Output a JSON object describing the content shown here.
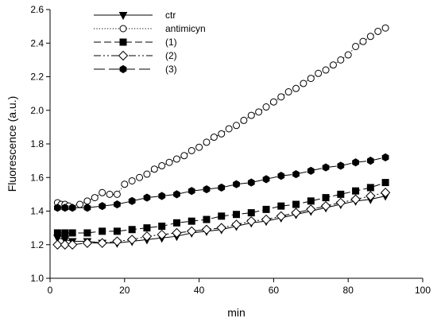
{
  "chart_data": {
    "type": "line",
    "title": "",
    "xlabel": "min",
    "ylabel": "Fluorescence (a.u.)",
    "xlim": [
      0,
      100
    ],
    "ylim": [
      1.0,
      2.6
    ],
    "xticks": [
      0,
      20,
      40,
      60,
      80,
      100
    ],
    "xtick_labels": [
      "0",
      "20",
      "40",
      "60",
      "80",
      "100"
    ],
    "yticks": [
      1.0,
      1.2,
      1.4,
      1.6,
      1.8,
      2.0,
      2.2,
      2.4,
      2.6
    ],
    "ytick_labels": [
      "1.0",
      "1.2",
      "1.4",
      "1.6",
      "1.8",
      "2.0",
      "2.2",
      "2.4",
      "2.6"
    ],
    "grid": false,
    "legend_position": "top-left",
    "series": [
      {
        "name": "ctr",
        "marker": "triangle-down",
        "marker_fill": "filled",
        "line_style": "solid",
        "x": [
          2,
          4,
          6,
          10,
          14,
          18,
          22,
          26,
          30,
          34,
          38,
          42,
          46,
          50,
          54,
          58,
          62,
          66,
          70,
          74,
          78,
          82,
          86,
          90
        ],
        "y": [
          1.24,
          1.23,
          1.22,
          1.22,
          1.21,
          1.21,
          1.22,
          1.23,
          1.24,
          1.25,
          1.27,
          1.28,
          1.29,
          1.31,
          1.33,
          1.34,
          1.36,
          1.38,
          1.4,
          1.42,
          1.44,
          1.46,
          1.47,
          1.49
        ]
      },
      {
        "name": "antimicyn",
        "marker": "circle",
        "marker_fill": "open",
        "line_style": "dotted",
        "x": [
          2,
          3,
          4,
          5,
          8,
          10,
          12,
          14,
          16,
          18,
          20,
          22,
          24,
          26,
          28,
          30,
          32,
          34,
          36,
          38,
          40,
          42,
          44,
          46,
          48,
          50,
          52,
          54,
          56,
          58,
          60,
          62,
          64,
          66,
          68,
          70,
          72,
          74,
          76,
          78,
          80,
          82,
          84,
          86,
          88,
          90
        ],
        "y": [
          1.45,
          1.44,
          1.44,
          1.43,
          1.44,
          1.46,
          1.48,
          1.51,
          1.5,
          1.5,
          1.56,
          1.58,
          1.6,
          1.62,
          1.65,
          1.67,
          1.69,
          1.71,
          1.73,
          1.76,
          1.78,
          1.81,
          1.84,
          1.86,
          1.89,
          1.91,
          1.94,
          1.97,
          1.99,
          2.02,
          2.05,
          2.08,
          2.11,
          2.13,
          2.16,
          2.19,
          2.22,
          2.24,
          2.27,
          2.3,
          2.33,
          2.38,
          2.41,
          2.44,
          2.47,
          2.49
        ]
      },
      {
        "name": "(1)",
        "marker": "square",
        "marker_fill": "filled",
        "line_style": "dashed",
        "x": [
          2,
          4,
          6,
          10,
          14,
          18,
          22,
          26,
          30,
          34,
          38,
          42,
          46,
          50,
          54,
          58,
          62,
          66,
          70,
          74,
          78,
          82,
          86,
          90
        ],
        "y": [
          1.27,
          1.27,
          1.27,
          1.27,
          1.28,
          1.28,
          1.29,
          1.3,
          1.31,
          1.33,
          1.34,
          1.35,
          1.37,
          1.38,
          1.39,
          1.41,
          1.43,
          1.44,
          1.46,
          1.48,
          1.5,
          1.52,
          1.54,
          1.57
        ]
      },
      {
        "name": "(2)",
        "marker": "diamond",
        "marker_fill": "open",
        "line_style": "dash-dot-dot",
        "x": [
          2,
          4,
          6,
          10,
          14,
          18,
          22,
          26,
          30,
          34,
          38,
          42,
          46,
          50,
          54,
          58,
          62,
          66,
          70,
          74,
          78,
          82,
          86,
          90
        ],
        "y": [
          1.2,
          1.2,
          1.2,
          1.21,
          1.21,
          1.22,
          1.23,
          1.25,
          1.26,
          1.27,
          1.28,
          1.29,
          1.3,
          1.32,
          1.34,
          1.35,
          1.37,
          1.39,
          1.41,
          1.43,
          1.45,
          1.47,
          1.49,
          1.51
        ]
      },
      {
        "name": "(3)",
        "marker": "hexagon",
        "marker_fill": "filled",
        "line_style": "long-dash",
        "x": [
          2,
          4,
          6,
          10,
          14,
          18,
          22,
          26,
          30,
          34,
          38,
          42,
          46,
          50,
          54,
          58,
          62,
          66,
          70,
          74,
          78,
          82,
          86,
          90
        ],
        "y": [
          1.42,
          1.42,
          1.42,
          1.42,
          1.43,
          1.44,
          1.46,
          1.48,
          1.49,
          1.5,
          1.52,
          1.53,
          1.54,
          1.56,
          1.57,
          1.59,
          1.61,
          1.62,
          1.64,
          1.66,
          1.67,
          1.69,
          1.7,
          1.72
        ]
      }
    ]
  }
}
